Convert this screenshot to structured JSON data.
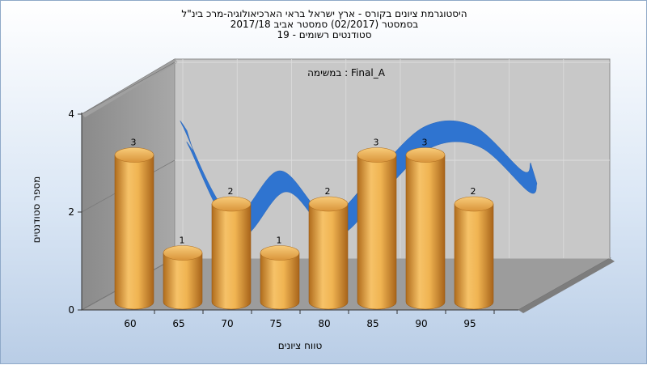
{
  "titles": {
    "line1": "היסטוגרמת ציונים בקורס - ארץ ישראל בראי הארכיאולוגיה-מרכ בינ\"ל",
    "line2": "בסמסטר  (02/2017)  סמסטר אביב 2017/18",
    "line3": "סטודנטים רשומים - 19"
  },
  "chart_data": {
    "type": "bar",
    "annotation": "במשימה : Final_A",
    "categories": [
      "60",
      "65",
      "70",
      "75",
      "80",
      "85",
      "90",
      "95"
    ],
    "values": [
      3,
      1,
      2,
      1,
      2,
      3,
      3,
      2
    ],
    "series": [
      {
        "name": "",
        "values": [
          3,
          1,
          2,
          1,
          2,
          3,
          3,
          2
        ]
      }
    ],
    "xlabel": "טווח ציונים",
    "ylabel": "מספר סטודנטים",
    "ylim": [
      0,
      4
    ],
    "yticks": [
      "0",
      "2",
      "4"
    ],
    "grid": true,
    "colors": {
      "bar": "#e3a34a",
      "curve": "#2f74d0",
      "wall": "#9a9a9a",
      "back": "#c7c7c7"
    }
  }
}
